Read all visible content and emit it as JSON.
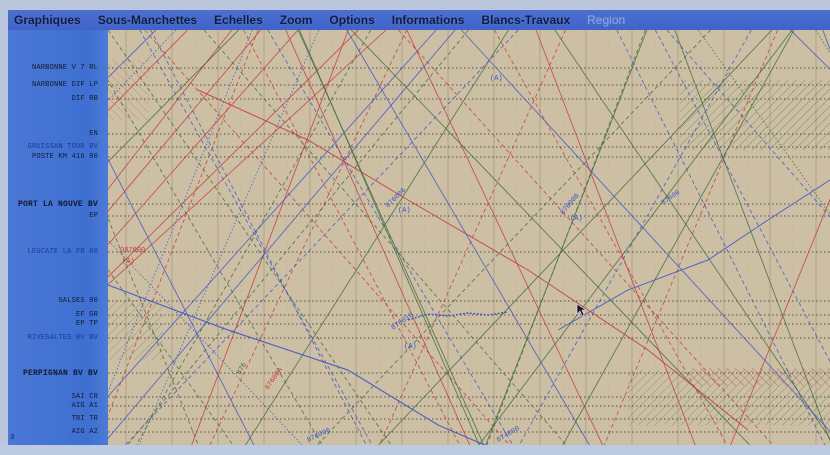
{
  "menubar": {
    "items": [
      {
        "label": "Graphiques",
        "enabled": true
      },
      {
        "label": "Sous-Manchettes",
        "enabled": true
      },
      {
        "label": "Echelles",
        "enabled": true
      },
      {
        "label": "Zoom",
        "enabled": true
      },
      {
        "label": "Options",
        "enabled": true
      },
      {
        "label": "Informations",
        "enabled": true
      },
      {
        "label": "Blancs-Travaux",
        "enabled": true
      },
      {
        "label": "Region",
        "enabled": false
      }
    ]
  },
  "stations": [
    {
      "label": "NARBONNE V 7  RL"
    },
    {
      "label": "NARBONNE DIF  LP"
    },
    {
      "label": "DIF  RB"
    },
    {
      "label": "EN"
    },
    {
      "label": "GRUISSAN TOUR  BV"
    },
    {
      "label": "POSTE KM 416  00"
    },
    {
      "label": "PORT LA NOUVE BV"
    },
    {
      "label": "EP"
    },
    {
      "label": "LEUCATE LA FR  00"
    },
    {
      "label": "SALSES  00"
    },
    {
      "label": "EF  GR"
    },
    {
      "label": "EP  TP"
    },
    {
      "label": "RIVESALTES BV  BV"
    },
    {
      "label": "PERPIGNAN BV  BV"
    },
    {
      "label": "SAI  CR"
    },
    {
      "label": "AIG  A1"
    },
    {
      "label": "TRI  TR"
    },
    {
      "label": "AIG  A2"
    }
  ],
  "stray_mark": "3",
  "graph_labels": [
    "087600",
    "(A)",
    "876006",
    "876008",
    "87600",
    "876010",
    "874000",
    "876006",
    "(A)",
    "(A)",
    "(A)",
    "(A)",
    "87600A",
    "876"
  ],
  "colors": {
    "menubar": "#4066cc",
    "panel": "#3f70d2",
    "graph_bg": "#cdbfa4",
    "red_trains": "#c23a3a",
    "green_trains": "#3d6b3a",
    "blue_trains": "#3b54c8",
    "grid": "#6f6a5a"
  },
  "icons": {
    "cursor": "arrow-cursor-icon"
  }
}
